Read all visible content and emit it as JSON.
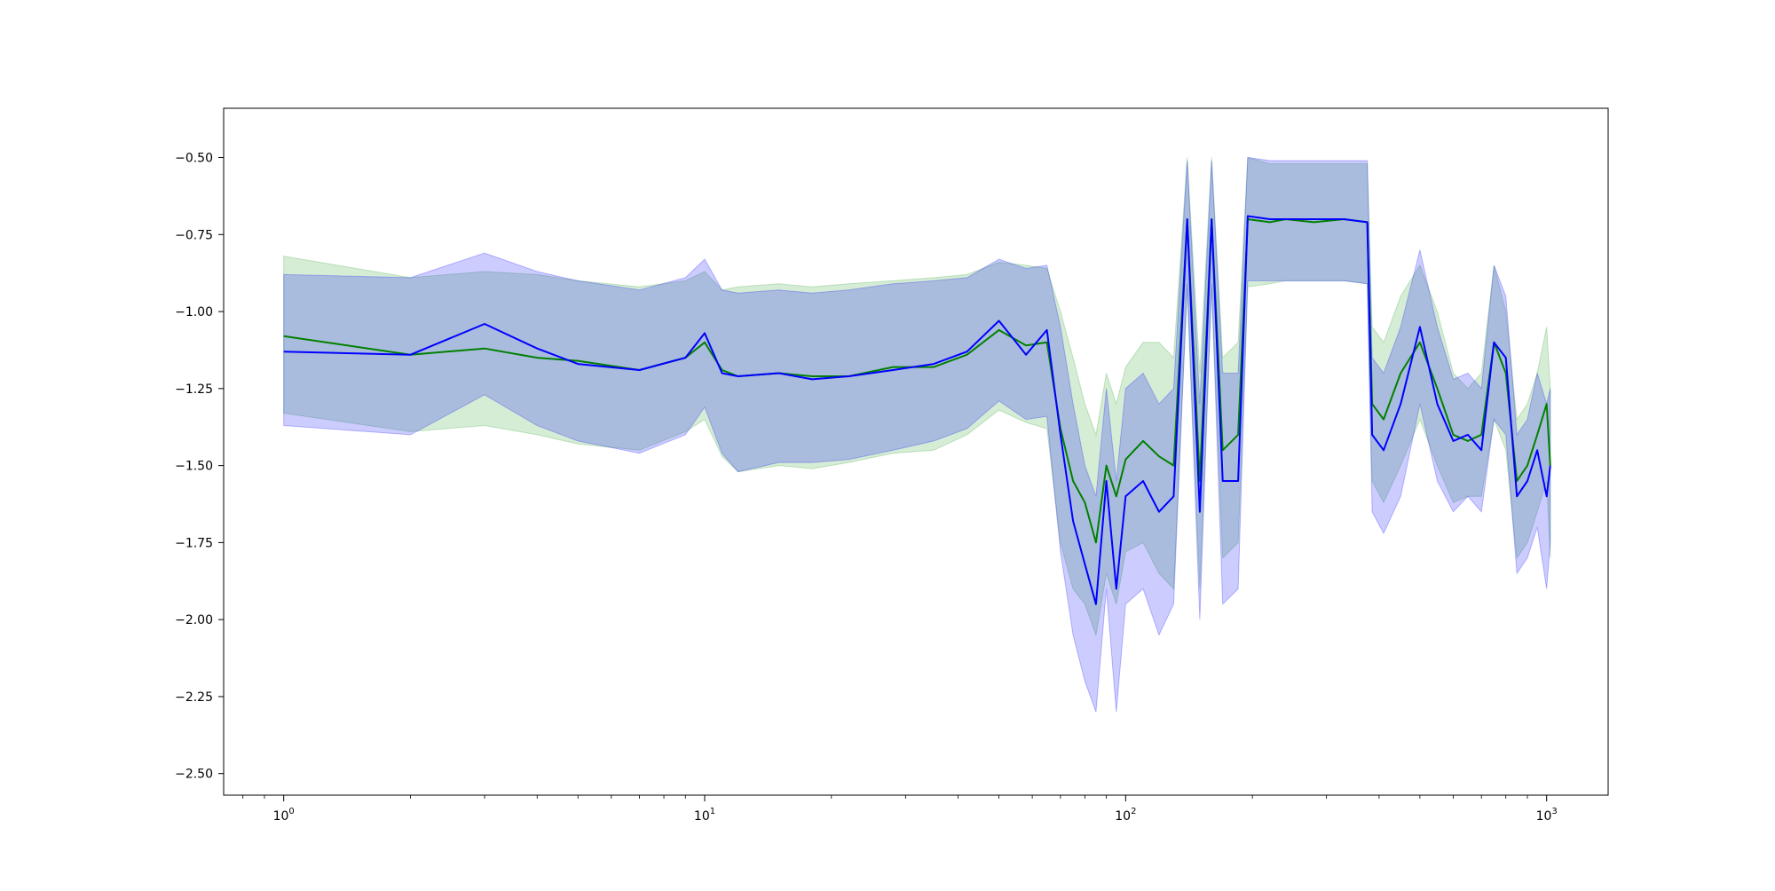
{
  "chart_data": {
    "type": "line",
    "title": "",
    "xlabel": "",
    "ylabel": "",
    "xscale": "log",
    "xlim": [
      0.72,
      1400
    ],
    "ylim": [
      -2.57,
      -0.34
    ],
    "grid": false,
    "legend": "none",
    "x_ticks": [
      {
        "value": 1,
        "base": "10",
        "exp": "0"
      },
      {
        "value": 10,
        "base": "10",
        "exp": "1"
      },
      {
        "value": 100,
        "base": "10",
        "exp": "2"
      },
      {
        "value": 1000,
        "base": "10",
        "exp": "3"
      }
    ],
    "y_ticks": [
      {
        "value": -0.5,
        "label": "−0.50"
      },
      {
        "value": -0.75,
        "label": "−0.75"
      },
      {
        "value": -1.0,
        "label": "−1.00"
      },
      {
        "value": -1.25,
        "label": "−1.25"
      },
      {
        "value": -1.5,
        "label": "−1.50"
      },
      {
        "value": -1.75,
        "label": "−1.75"
      },
      {
        "value": -2.0,
        "label": "−2.00"
      },
      {
        "value": -2.25,
        "label": "−2.25"
      },
      {
        "value": -2.5,
        "label": "−2.50"
      }
    ],
    "series": [
      {
        "color": "#008000",
        "band_color": "#2ca02c",
        "points": [
          [
            1,
            -1.08,
            -0.82,
            -1.33
          ],
          [
            2,
            -1.14,
            -0.89,
            -1.39
          ],
          [
            3,
            -1.12,
            -0.87,
            -1.37
          ],
          [
            4,
            -1.15,
            -0.88,
            -1.4
          ],
          [
            5,
            -1.16,
            -0.9,
            -1.43
          ],
          [
            7,
            -1.19,
            -0.92,
            -1.45
          ],
          [
            9,
            -1.15,
            -0.9,
            -1.39
          ],
          [
            10,
            -1.1,
            -0.87,
            -1.35
          ],
          [
            11,
            -1.19,
            -0.93,
            -1.47
          ],
          [
            12,
            -1.21,
            -0.92,
            -1.52
          ],
          [
            15,
            -1.2,
            -0.91,
            -1.5
          ],
          [
            18,
            -1.21,
            -0.92,
            -1.51
          ],
          [
            22,
            -1.21,
            -0.91,
            -1.49
          ],
          [
            28,
            -1.18,
            -0.9,
            -1.46
          ],
          [
            35,
            -1.18,
            -0.89,
            -1.45
          ],
          [
            42,
            -1.14,
            -0.88,
            -1.4
          ],
          [
            50,
            -1.06,
            -0.84,
            -1.32
          ],
          [
            58,
            -1.11,
            -0.85,
            -1.36
          ],
          [
            65,
            -1.1,
            -0.86,
            -1.38
          ],
          [
            70,
            -1.38,
            -1.0,
            -1.75
          ],
          [
            75,
            -1.55,
            -1.15,
            -1.9
          ],
          [
            80,
            -1.62,
            -1.3,
            -1.95
          ],
          [
            85,
            -1.75,
            -1.4,
            -2.05
          ],
          [
            90,
            -1.5,
            -1.2,
            -1.85
          ],
          [
            95,
            -1.6,
            -1.3,
            -1.95
          ],
          [
            100,
            -1.48,
            -1.18,
            -1.78
          ],
          [
            110,
            -1.42,
            -1.1,
            -1.75
          ],
          [
            120,
            -1.47,
            -1.1,
            -1.85
          ],
          [
            130,
            -1.5,
            -1.15,
            -1.9
          ],
          [
            140,
            -0.7,
            -0.5,
            -0.92
          ],
          [
            150,
            -1.55,
            -1.2,
            -1.9
          ],
          [
            160,
            -0.7,
            -0.5,
            -0.92
          ],
          [
            170,
            -1.45,
            -1.15,
            -1.8
          ],
          [
            185,
            -1.4,
            -1.1,
            -1.75
          ],
          [
            195,
            -0.7,
            -0.5,
            -0.92
          ],
          [
            220,
            -0.71,
            -0.52,
            -0.91
          ],
          [
            240,
            -0.7,
            -0.52,
            -0.9
          ],
          [
            280,
            -0.71,
            -0.52,
            -0.9
          ],
          [
            330,
            -0.7,
            -0.52,
            -0.9
          ],
          [
            375,
            -0.71,
            -0.52,
            -0.91
          ],
          [
            385,
            -1.3,
            -1.05,
            -1.55
          ],
          [
            410,
            -1.35,
            -1.1,
            -1.62
          ],
          [
            450,
            -1.2,
            -0.95,
            -1.5
          ],
          [
            500,
            -1.1,
            -0.85,
            -1.35
          ],
          [
            550,
            -1.25,
            -1.0,
            -1.5
          ],
          [
            600,
            -1.4,
            -1.2,
            -1.62
          ],
          [
            650,
            -1.42,
            -1.25,
            -1.6
          ],
          [
            700,
            -1.4,
            -1.2,
            -1.6
          ],
          [
            750,
            -1.1,
            -0.85,
            -1.35
          ],
          [
            800,
            -1.2,
            -1.0,
            -1.45
          ],
          [
            850,
            -1.55,
            -1.35,
            -1.8
          ],
          [
            900,
            -1.5,
            -1.3,
            -1.75
          ],
          [
            950,
            -1.4,
            -1.2,
            -1.65
          ],
          [
            1000,
            -1.3,
            -1.05,
            -1.55
          ],
          [
            1020,
            -1.5,
            -1.25,
            -1.8
          ]
        ]
      },
      {
        "color": "#0000ff",
        "band_color": "#0000ff",
        "points": [
          [
            1,
            -1.13,
            -0.88,
            -1.37
          ],
          [
            2,
            -1.14,
            -0.89,
            -1.4
          ],
          [
            3,
            -1.04,
            -0.81,
            -1.27
          ],
          [
            4,
            -1.12,
            -0.87,
            -1.37
          ],
          [
            5,
            -1.17,
            -0.9,
            -1.42
          ],
          [
            7,
            -1.19,
            -0.93,
            -1.46
          ],
          [
            9,
            -1.15,
            -0.89,
            -1.4
          ],
          [
            10,
            -1.07,
            -0.83,
            -1.31
          ],
          [
            11,
            -1.2,
            -0.93,
            -1.46
          ],
          [
            12,
            -1.21,
            -0.94,
            -1.52
          ],
          [
            15,
            -1.2,
            -0.93,
            -1.49
          ],
          [
            18,
            -1.22,
            -0.94,
            -1.49
          ],
          [
            22,
            -1.21,
            -0.93,
            -1.48
          ],
          [
            28,
            -1.19,
            -0.91,
            -1.45
          ],
          [
            35,
            -1.17,
            -0.9,
            -1.42
          ],
          [
            42,
            -1.13,
            -0.89,
            -1.38
          ],
          [
            50,
            -1.03,
            -0.83,
            -1.29
          ],
          [
            58,
            -1.14,
            -0.86,
            -1.35
          ],
          [
            65,
            -1.06,
            -0.85,
            -1.34
          ],
          [
            70,
            -1.4,
            -1.05,
            -1.78
          ],
          [
            75,
            -1.68,
            -1.3,
            -2.05
          ],
          [
            80,
            -1.82,
            -1.5,
            -2.2
          ],
          [
            85,
            -1.95,
            -1.6,
            -2.3
          ],
          [
            90,
            -1.55,
            -1.25,
            -1.9
          ],
          [
            95,
            -1.9,
            -1.55,
            -2.3
          ],
          [
            100,
            -1.6,
            -1.25,
            -1.95
          ],
          [
            110,
            -1.55,
            -1.2,
            -1.9
          ],
          [
            120,
            -1.65,
            -1.3,
            -2.05
          ],
          [
            130,
            -1.6,
            -1.25,
            -1.95
          ],
          [
            140,
            -0.7,
            -0.51,
            -0.91
          ],
          [
            150,
            -1.65,
            -1.3,
            -2.0
          ],
          [
            160,
            -0.7,
            -0.51,
            -0.91
          ],
          [
            170,
            -1.55,
            -1.2,
            -1.95
          ],
          [
            185,
            -1.55,
            -1.2,
            -1.9
          ],
          [
            195,
            -0.69,
            -0.5,
            -0.9
          ],
          [
            220,
            -0.7,
            -0.51,
            -0.9
          ],
          [
            240,
            -0.7,
            -0.51,
            -0.9
          ],
          [
            280,
            -0.7,
            -0.51,
            -0.9
          ],
          [
            330,
            -0.7,
            -0.51,
            -0.9
          ],
          [
            375,
            -0.71,
            -0.51,
            -0.91
          ],
          [
            385,
            -1.4,
            -1.15,
            -1.65
          ],
          [
            410,
            -1.45,
            -1.2,
            -1.72
          ],
          [
            450,
            -1.3,
            -1.05,
            -1.6
          ],
          [
            500,
            -1.05,
            -0.8,
            -1.3
          ],
          [
            550,
            -1.3,
            -1.05,
            -1.55
          ],
          [
            600,
            -1.42,
            -1.22,
            -1.65
          ],
          [
            650,
            -1.4,
            -1.2,
            -1.6
          ],
          [
            700,
            -1.45,
            -1.25,
            -1.65
          ],
          [
            750,
            -1.1,
            -0.85,
            -1.35
          ],
          [
            800,
            -1.15,
            -0.95,
            -1.4
          ],
          [
            850,
            -1.6,
            -1.4,
            -1.85
          ],
          [
            900,
            -1.55,
            -1.35,
            -1.8
          ],
          [
            950,
            -1.45,
            -1.2,
            -1.7
          ],
          [
            1000,
            -1.6,
            -1.3,
            -1.9
          ],
          [
            1020,
            -1.5,
            -1.25,
            -1.75
          ]
        ]
      }
    ]
  }
}
